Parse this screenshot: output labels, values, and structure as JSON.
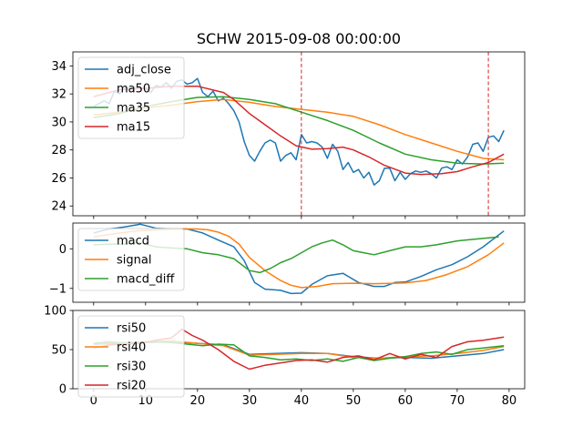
{
  "chart_data": [
    {
      "type": "line",
      "title": "SCHW 2015-09-08 00:00:00",
      "xlim": [
        -4,
        83
      ],
      "ylim": [
        23.3,
        35
      ],
      "xticks": [
        0,
        10,
        20,
        30,
        40,
        50,
        60,
        70,
        80
      ],
      "yticks": [
        24,
        26,
        28,
        30,
        32,
        34
      ],
      "show_xtick_labels": false,
      "legend": "top-left",
      "vlines": [
        {
          "x": 40,
          "color": "#d62728",
          "style": "dashed"
        },
        {
          "x": 76,
          "color": "#d62728",
          "style": "dashed"
        }
      ],
      "series": [
        {
          "name": "adj_close",
          "color": "#1f77b4",
          "x": [
            0,
            2,
            3,
            4,
            5,
            6,
            7,
            8,
            9,
            10,
            11,
            12,
            13,
            14,
            15,
            16,
            17,
            18,
            19,
            20,
            21,
            22,
            23,
            24,
            25,
            26,
            27,
            28,
            29,
            30,
            31,
            32,
            33,
            34,
            35,
            36,
            37,
            38,
            39,
            40,
            41,
            42,
            43,
            44,
            45,
            46,
            47,
            48,
            49,
            50,
            51,
            52,
            53,
            54,
            55,
            56,
            57,
            58,
            59,
            60,
            61,
            62,
            63,
            64,
            65,
            66,
            67,
            68,
            69,
            70,
            71,
            72,
            73,
            74,
            75,
            76,
            77,
            78,
            79
          ],
          "values": [
            31.1,
            31.5,
            31.3,
            32.2,
            32.0,
            32.5,
            32.4,
            32.5,
            32.4,
            32.4,
            32.1,
            32.6,
            32.5,
            32.8,
            32.4,
            32.9,
            33.0,
            32.7,
            32.8,
            33.1,
            32.1,
            31.8,
            32.2,
            31.5,
            31.7,
            31.3,
            30.8,
            30.0,
            28.6,
            27.6,
            27.2,
            27.9,
            28.5,
            28.7,
            28.5,
            27.2,
            27.6,
            27.8,
            27.3,
            29.1,
            28.5,
            28.6,
            28.5,
            28.2,
            27.4,
            28.4,
            27.9,
            26.6,
            27.1,
            26.4,
            26.6,
            26.0,
            26.4,
            25.5,
            25.8,
            26.7,
            26.7,
            25.8,
            26.4,
            25.9,
            26.3,
            26.5,
            26.4,
            26.5,
            26.3,
            26.0,
            26.7,
            26.8,
            26.6,
            27.3,
            27.0,
            27.5,
            28.4,
            28.5,
            27.9,
            28.9,
            29.0,
            28.6,
            29.4
          ]
        },
        {
          "name": "ma50",
          "color": "#ff7f0e",
          "x": [
            0,
            5,
            10,
            15,
            20,
            25,
            30,
            35,
            40,
            45,
            50,
            55,
            60,
            65,
            70,
            75,
            79
          ],
          "values": [
            30.5,
            30.7,
            31.0,
            31.2,
            31.45,
            31.6,
            31.4,
            31.1,
            30.9,
            30.7,
            30.4,
            29.8,
            29.1,
            28.5,
            27.9,
            27.4,
            27.3
          ]
        },
        {
          "name": "ma35",
          "color": "#2ca02c",
          "x": [
            0,
            5,
            10,
            15,
            20,
            25,
            30,
            35,
            40,
            45,
            50,
            55,
            60,
            65,
            70,
            75,
            79
          ],
          "values": [
            30.3,
            30.6,
            31.1,
            31.45,
            31.75,
            31.8,
            31.6,
            31.3,
            30.7,
            30.1,
            29.4,
            28.5,
            27.7,
            27.3,
            27.05,
            27.0,
            27.05
          ]
        },
        {
          "name": "ma15",
          "color": "#d62728",
          "x": [
            0,
            5,
            10,
            15,
            20,
            25,
            27,
            30,
            33,
            36,
            39,
            42,
            45,
            48,
            50,
            53,
            56,
            60,
            63,
            67,
            70,
            73,
            76,
            79
          ],
          "values": [
            31.8,
            32.3,
            32.4,
            32.55,
            32.55,
            32.1,
            31.6,
            30.6,
            29.8,
            29.0,
            28.3,
            28.05,
            28.1,
            28.2,
            28.0,
            27.5,
            26.9,
            26.35,
            26.25,
            26.3,
            26.45,
            26.8,
            27.1,
            27.7
          ]
        }
      ]
    },
    {
      "type": "line",
      "xlim": [
        -4,
        83
      ],
      "ylim": [
        -1.35,
        0.65
      ],
      "xticks": [
        0,
        10,
        20,
        30,
        40,
        50,
        60,
        70,
        80
      ],
      "yticks": [
        -1,
        0
      ],
      "show_xtick_labels": false,
      "legend": "top-left",
      "series": [
        {
          "name": "macd",
          "color": "#1f77b4",
          "x": [
            0,
            3,
            6,
            9,
            12,
            15,
            18,
            21,
            24,
            27,
            29,
            31,
            33,
            36,
            38,
            40,
            42,
            45,
            48,
            51,
            54,
            56,
            58,
            60,
            63,
            66,
            69,
            72,
            75,
            79
          ],
          "values": [
            0.4,
            0.5,
            0.55,
            0.62,
            0.52,
            0.5,
            0.5,
            0.4,
            0.22,
            0.05,
            -0.3,
            -0.85,
            -1.02,
            -1.05,
            -1.13,
            -1.12,
            -0.9,
            -0.68,
            -0.62,
            -0.85,
            -0.95,
            -0.95,
            -0.85,
            -0.84,
            -0.7,
            -0.53,
            -0.4,
            -0.2,
            0.05,
            0.45
          ]
        },
        {
          "name": "signal",
          "color": "#ff7f0e",
          "x": [
            0,
            4,
            8,
            12,
            16,
            20,
            22,
            24,
            26,
            28,
            30,
            33,
            36,
            38,
            40,
            43,
            46,
            50,
            54,
            58,
            60,
            64,
            68,
            72,
            76,
            79
          ],
          "values": [
            0.3,
            0.38,
            0.45,
            0.48,
            0.5,
            0.5,
            0.48,
            0.42,
            0.32,
            0.12,
            -0.22,
            -0.55,
            -0.8,
            -0.92,
            -0.98,
            -0.95,
            -0.88,
            -0.87,
            -0.88,
            -0.87,
            -0.86,
            -0.8,
            -0.65,
            -0.45,
            -0.15,
            0.15
          ]
        },
        {
          "name": "macd_diff",
          "color": "#2ca02c",
          "x": [
            0,
            3,
            6,
            9,
            12,
            15,
            18,
            21,
            24,
            27,
            30,
            32,
            34,
            36,
            38,
            40,
            42,
            44,
            46,
            48,
            50,
            52,
            54,
            57,
            60,
            63,
            66,
            70,
            74,
            78
          ],
          "values": [
            0.1,
            0.12,
            0.12,
            0.15,
            0.05,
            0.02,
            0.0,
            -0.1,
            -0.15,
            -0.25,
            -0.55,
            -0.6,
            -0.5,
            -0.35,
            -0.25,
            -0.1,
            0.05,
            0.15,
            0.22,
            0.1,
            -0.05,
            -0.1,
            -0.15,
            -0.05,
            0.05,
            0.05,
            0.1,
            0.2,
            0.25,
            0.3
          ]
        }
      ]
    },
    {
      "type": "line",
      "xlim": [
        -4,
        83
      ],
      "ylim": [
        0,
        100
      ],
      "xticks": [
        0,
        10,
        20,
        30,
        40,
        50,
        60,
        70,
        80
      ],
      "yticks": [
        0,
        50,
        100
      ],
      "show_xtick_labels": true,
      "legend": "top-left",
      "series": [
        {
          "name": "rsi50",
          "color": "#1f77b4",
          "x": [
            0,
            5,
            10,
            15,
            20,
            25,
            30,
            35,
            40,
            45,
            50,
            55,
            60,
            65,
            70,
            75,
            79
          ],
          "values": [
            57,
            58,
            59,
            60,
            58,
            56,
            44,
            45,
            46,
            45,
            41,
            39,
            40,
            39,
            42,
            45,
            50
          ]
        },
        {
          "name": "rsi40",
          "color": "#ff7f0e",
          "x": [
            0,
            5,
            10,
            15,
            20,
            25,
            30,
            35,
            40,
            45,
            50,
            55,
            60,
            65,
            70,
            75,
            79
          ],
          "values": [
            58,
            59,
            60,
            61,
            58,
            55,
            43,
            44,
            45,
            45,
            40,
            39,
            41,
            42,
            45,
            49,
            54
          ]
        },
        {
          "name": "rsi30",
          "color": "#2ca02c",
          "x": [
            0,
            3,
            6,
            9,
            12,
            15,
            18,
            21,
            24,
            27,
            30,
            33,
            36,
            39,
            42,
            45,
            48,
            51,
            54,
            57,
            60,
            63,
            66,
            69,
            72,
            75,
            79
          ],
          "values": [
            58,
            60,
            58,
            59,
            60,
            59,
            57,
            55,
            57,
            56,
            42,
            40,
            37,
            38,
            36,
            38,
            35,
            40,
            36,
            39,
            41,
            45,
            47,
            44,
            50,
            52,
            55
          ]
        },
        {
          "name": "rsi20",
          "color": "#d62728",
          "x": [
            0,
            3,
            6,
            9,
            12,
            15,
            17,
            19,
            21,
            24,
            27,
            30,
            33,
            36,
            39,
            42,
            45,
            48,
            51,
            54,
            57,
            60,
            63,
            66,
            69,
            72,
            75,
            79
          ],
          "values": [
            52,
            56,
            57,
            58,
            62,
            65,
            76,
            68,
            62,
            50,
            35,
            25,
            30,
            33,
            36,
            37,
            34,
            40,
            42,
            37,
            45,
            38,
            44,
            40,
            54,
            60,
            62,
            66
          ]
        }
      ]
    }
  ]
}
